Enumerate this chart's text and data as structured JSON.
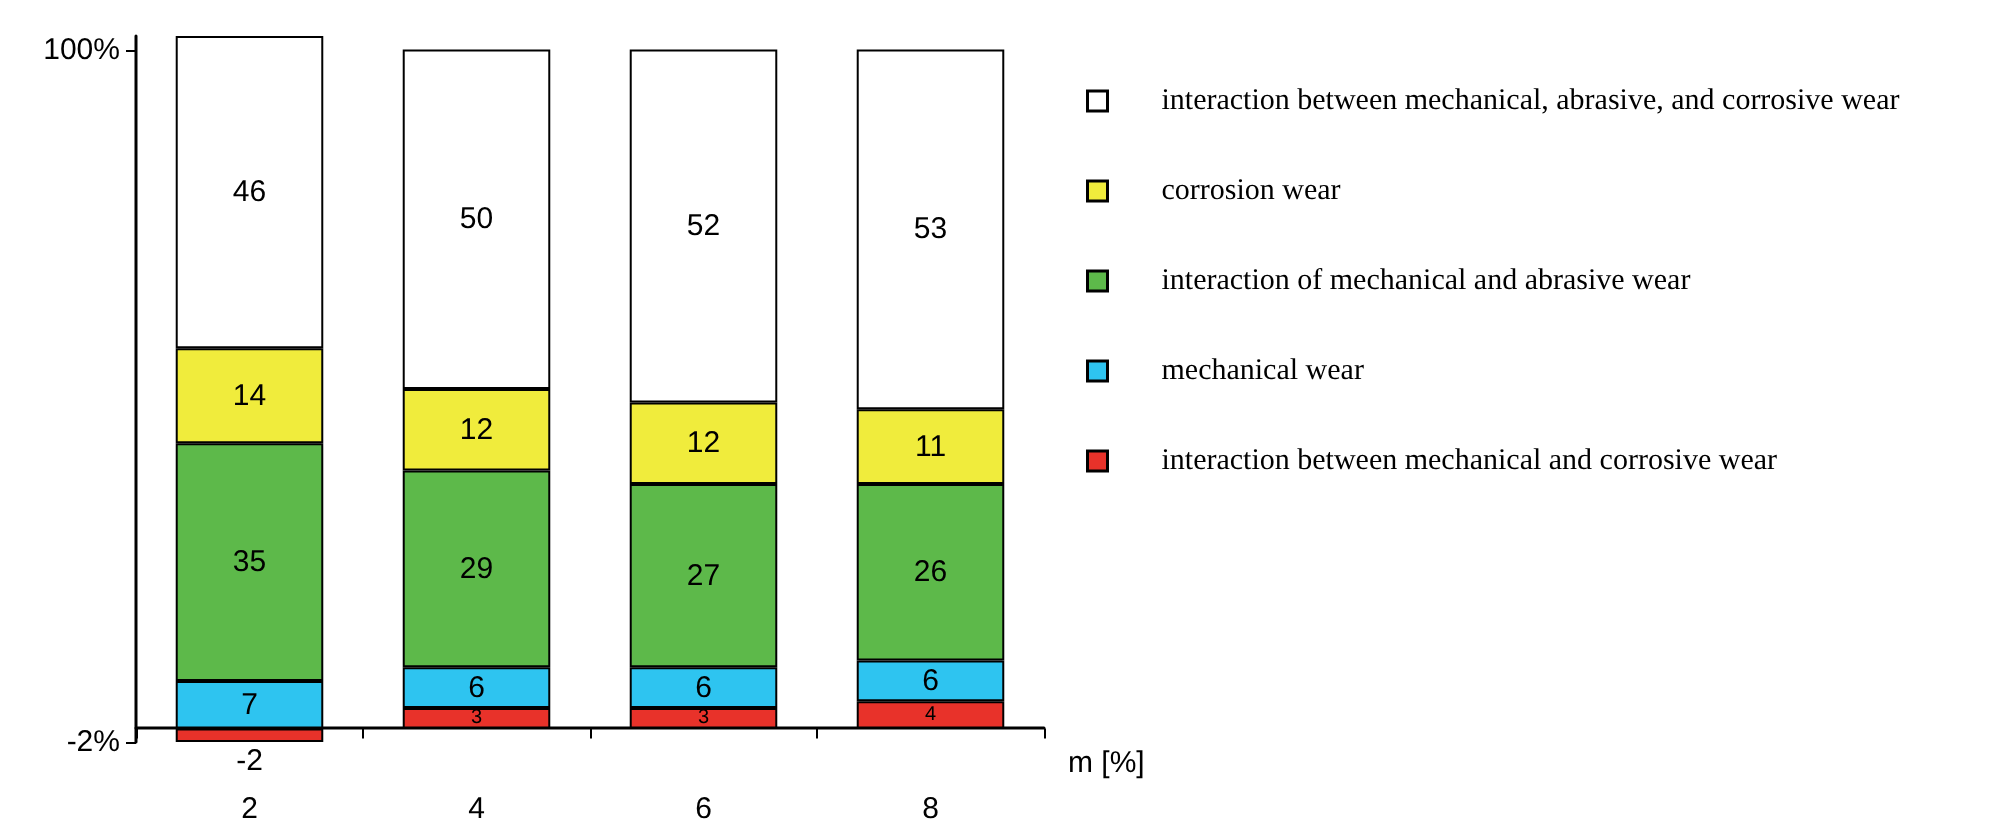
{
  "chart_data": {
    "type": "bar",
    "stacked": true,
    "xlabel": "m [%]",
    "categories": [
      "2",
      "4",
      "6",
      "8"
    ],
    "ylim": [
      -2,
      102
    ],
    "yticks": [
      {
        "value": -2,
        "label": "-2%"
      },
      {
        "value": 100,
        "label": "100%"
      }
    ],
    "series": [
      {
        "name": "interaction between mechanical and corrosive wear",
        "color": "#e8322a",
        "values": [
          -2,
          3,
          3,
          4
        ]
      },
      {
        "name": "mechanical wear",
        "color": "#2ec4f0",
        "values": [
          7,
          6,
          6,
          6
        ]
      },
      {
        "name": "interaction of mechanical and abrasive wear",
        "color": "#5db94a",
        "values": [
          35,
          29,
          27,
          26
        ]
      },
      {
        "name": "corrosion wear",
        "color": "#f0ec3c",
        "values": [
          14,
          12,
          12,
          11
        ]
      },
      {
        "name": "interaction between mechanical, abrasive, and corrosive wear",
        "color": "#ffffff",
        "values": [
          46,
          50,
          52,
          53
        ]
      }
    ],
    "data_labels": true,
    "legend": "right",
    "grid": false
  }
}
